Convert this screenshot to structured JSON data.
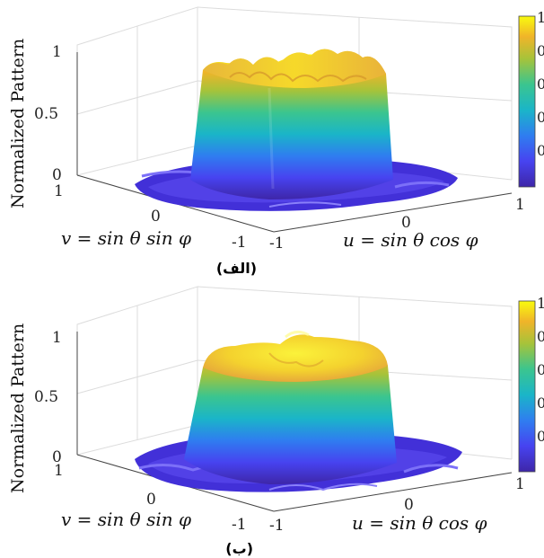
{
  "chart_data": [
    {
      "type": "surface",
      "caption": "(الف)",
      "zlabel": "Normalized Pattern",
      "xlabel": "u = sin θ cos φ",
      "ylabel": "v = sin θ sin φ",
      "x_ticks": [
        "-1",
        "0",
        "1"
      ],
      "y_ticks": [
        "-1",
        "0",
        "1"
      ],
      "z_ticks": [
        "0",
        "0.5",
        "1"
      ],
      "zlim": [
        0,
        1
      ],
      "colorbar_ticks": [
        "1",
        "0.",
        "0.",
        "0.",
        "0."
      ],
      "shape": "flat-top beam with ripples on the top edge, level near 1, sidelobes near 0",
      "colormap": [
        "#3e26a8",
        "#4743f0",
        "#2f7df0",
        "#1ab5c8",
        "#3bc58f",
        "#a6c33a",
        "#f0b429",
        "#f9fb0e"
      ]
    },
    {
      "type": "surface",
      "caption": "(ب)",
      "zlabel": "Normalized Pattern",
      "xlabel": "u = sin θ cos φ",
      "ylabel": "v = sin θ sin φ",
      "x_ticks": [
        "-1",
        "0",
        "1"
      ],
      "y_ticks": [
        "-1",
        "0",
        "1"
      ],
      "z_ticks": [
        "0",
        "0.5",
        "1"
      ],
      "zlim": [
        0,
        1
      ],
      "colorbar_ticks": [
        "1",
        "0",
        "0",
        "0",
        "0"
      ],
      "shape": "smoother flat-top beam with a central bump, level near 1, sidelobes near 0",
      "colormap": [
        "#3e26a8",
        "#4743f0",
        "#2f7df0",
        "#1ab5c8",
        "#3bc58f",
        "#a6c33a",
        "#f0b429",
        "#f9fb0e"
      ]
    }
  ]
}
